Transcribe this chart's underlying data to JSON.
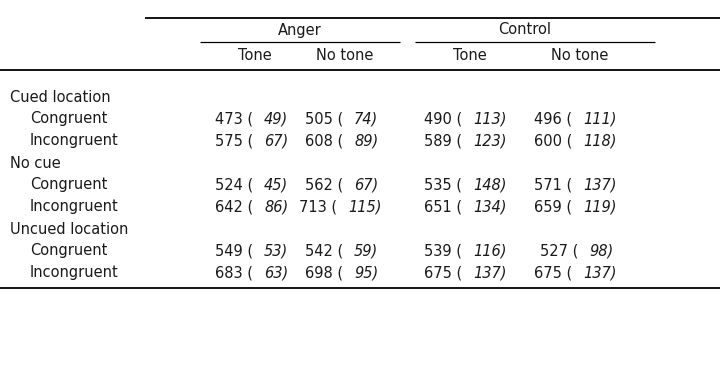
{
  "col_groups": [
    "Anger",
    "Control"
  ],
  "col_subheaders": [
    "Tone",
    "No tone",
    "Tone",
    "No tone"
  ],
  "row_groups": [
    "Cued location",
    "No cue",
    "Uncued location"
  ],
  "rows": [
    {
      "group": "Cued location",
      "label": "Congruent",
      "values": [
        "473",
        "49",
        "505",
        "74",
        "490",
        "113",
        "496",
        "111"
      ]
    },
    {
      "group": "Cued location",
      "label": "Incongruent",
      "values": [
        "575",
        "67",
        "608",
        "89",
        "589",
        "123",
        "600",
        "118"
      ]
    },
    {
      "group": "No cue",
      "label": "Congruent",
      "values": [
        "524",
        "45",
        "562",
        "67",
        "535",
        "148",
        "571",
        "137"
      ]
    },
    {
      "group": "No cue",
      "label": "Incongruent",
      "values": [
        "642",
        "86",
        "713",
        "115",
        "651",
        "134",
        "659",
        "119"
      ]
    },
    {
      "group": "Uncued location",
      "label": "Congruent",
      "values": [
        "549",
        "53",
        "542",
        "59",
        "539",
        "116",
        "527",
        "98"
      ]
    },
    {
      "group": "Uncued location",
      "label": "Incongruent",
      "values": [
        "683",
        "63",
        "698",
        "95",
        "675",
        "137",
        "675",
        "137"
      ]
    }
  ],
  "background_color": "#ffffff",
  "text_color": "#1a1a1a",
  "font_size": 10.5,
  "header_font_size": 10.5
}
